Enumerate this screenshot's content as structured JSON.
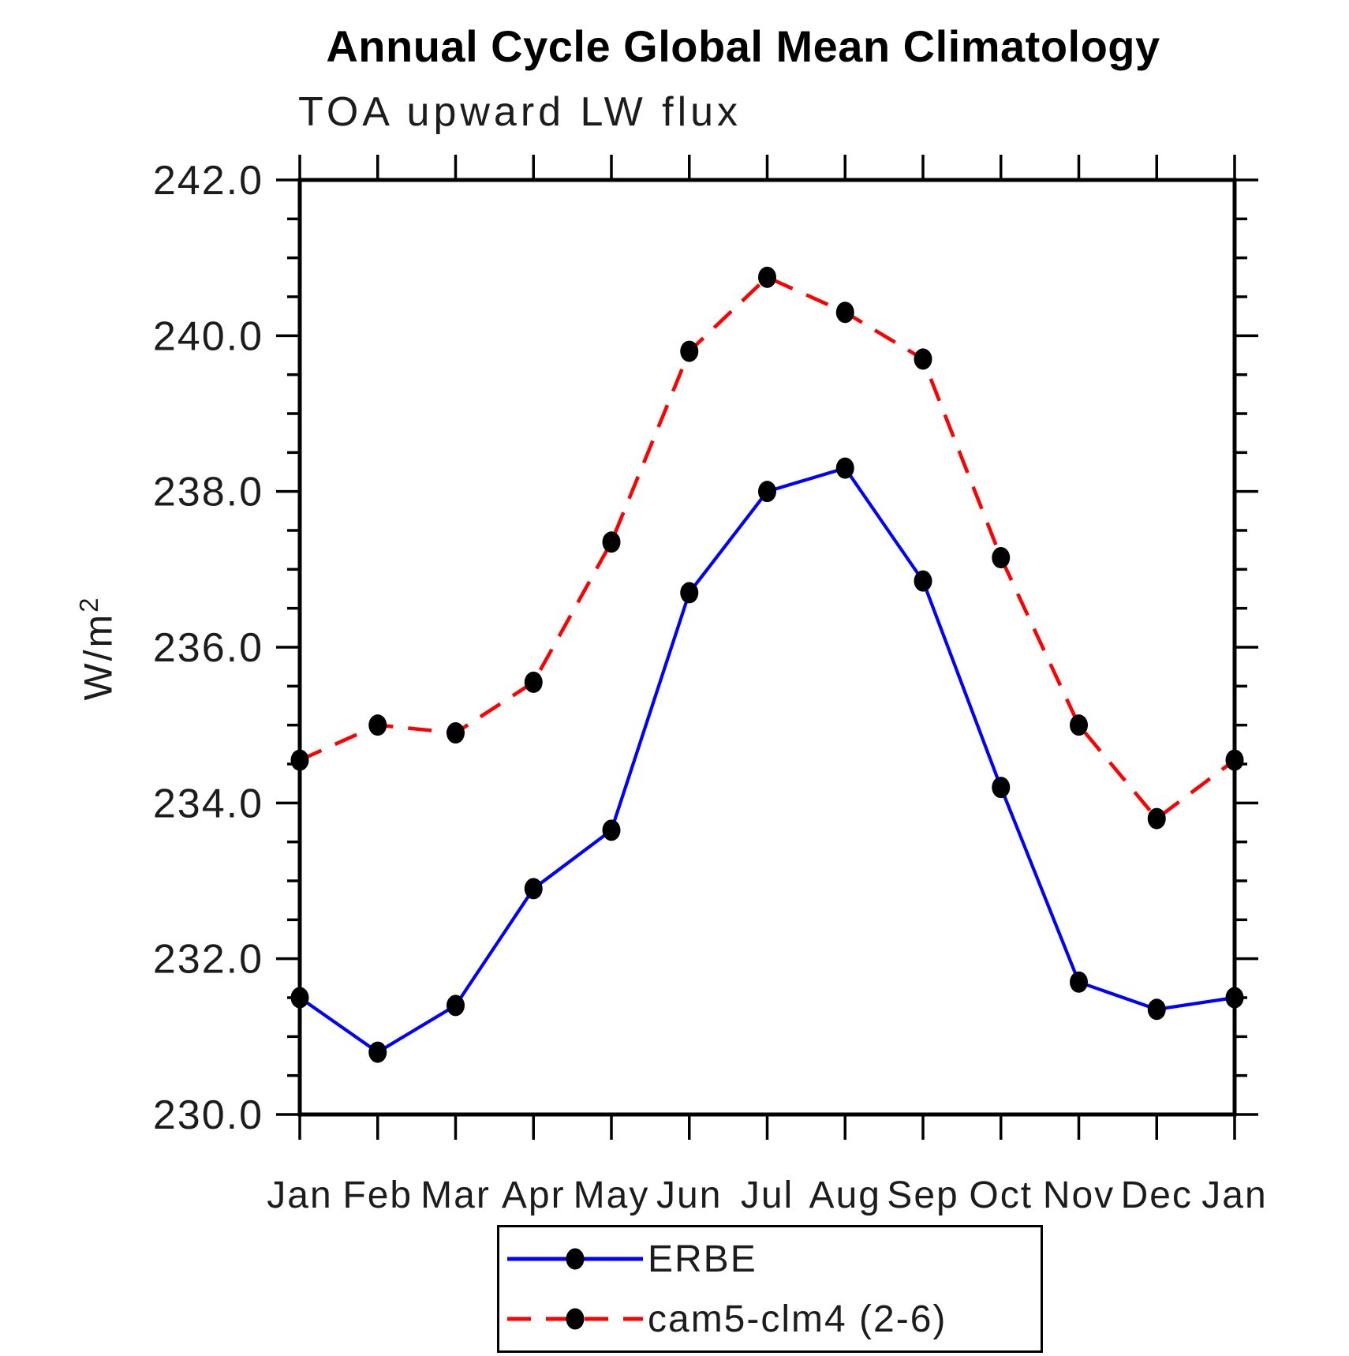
{
  "page": {
    "background": "#ffffff"
  },
  "chart_data": {
    "type": "line",
    "title": "Annual Cycle Global Mean Climatology",
    "subtitle": "TOA upward LW flux",
    "ylabel_base": "W/m",
    "ylabel_exponent": "2",
    "categories": [
      "Jan",
      "Feb",
      "Mar",
      "Apr",
      "May",
      "Jun",
      "Jul",
      "Aug",
      "Sep",
      "Oct",
      "Nov",
      "Dec",
      "Jan"
    ],
    "ylim": [
      230.0,
      242.0
    ],
    "y_major_tick_step": 2.0,
    "y_minor_tick_step": 0.5,
    "y_tick_labels": [
      "242.0",
      "240.0",
      "238.0",
      "236.0",
      "234.0",
      "232.0",
      "230.0"
    ],
    "grid": false,
    "axis_color": "#000000",
    "text_color": "#1c1c1c",
    "legend": {
      "position": "bottom-center",
      "boxed": true
    },
    "series": [
      {
        "name": "ERBE",
        "color": "#0000ff",
        "line_style": "solid",
        "marker": "filled-circle",
        "marker_color": "#000000",
        "values": [
          231.5,
          230.8,
          231.4,
          232.9,
          233.65,
          236.7,
          238.0,
          238.3,
          236.85,
          234.2,
          231.7,
          231.35,
          231.5
        ]
      },
      {
        "name": "cam5-clm4 (2-6)",
        "color": "#ff0000",
        "line_style": "dashed",
        "marker": "filled-circle",
        "marker_color": "#000000",
        "values": [
          234.55,
          235.0,
          234.9,
          235.55,
          237.35,
          239.8,
          240.75,
          240.3,
          239.7,
          237.15,
          235.0,
          233.8,
          234.55
        ]
      }
    ]
  }
}
